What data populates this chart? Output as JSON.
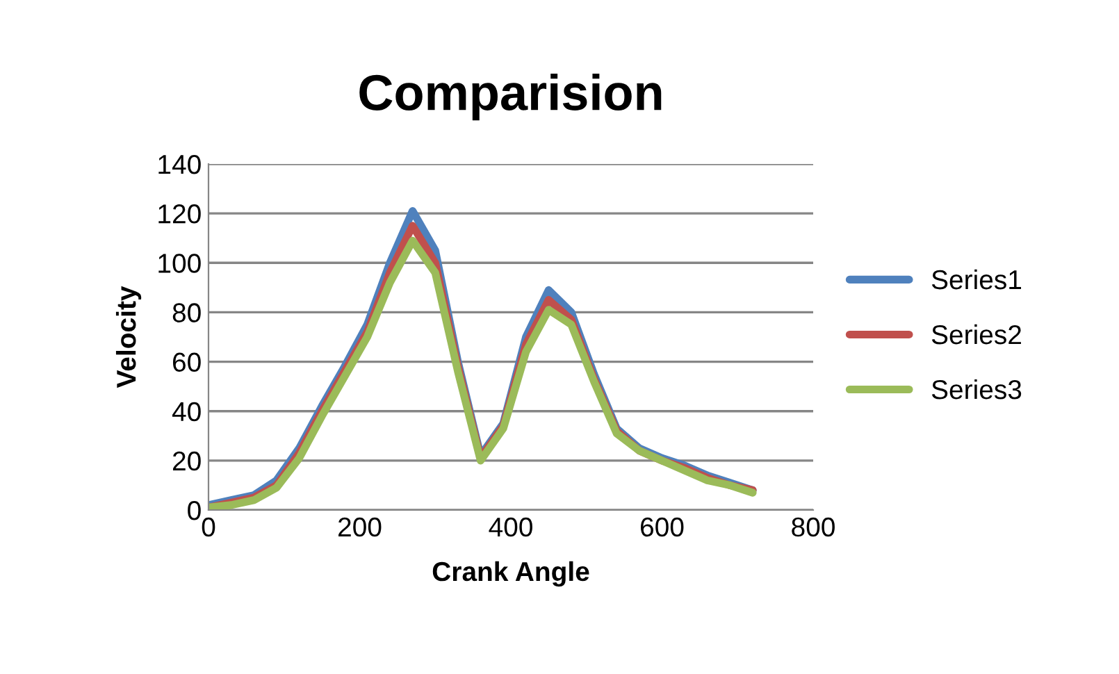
{
  "chart_data": {
    "type": "line",
    "title": "Comparision",
    "xlabel": "Crank Angle",
    "ylabel": "Velocity",
    "x": [
      0,
      30,
      60,
      90,
      120,
      150,
      180,
      210,
      240,
      270,
      300,
      330,
      360,
      390,
      420,
      450,
      480,
      510,
      540,
      570,
      600,
      630,
      660,
      690,
      720
    ],
    "series": [
      {
        "name": "Series1",
        "color": "#4f81bd",
        "values": [
          2,
          4,
          6,
          12,
          25,
          42,
          58,
          75,
          100,
          121,
          105,
          60,
          22,
          35,
          70,
          89,
          80,
          55,
          33,
          25,
          21,
          18,
          14,
          11,
          8
        ]
      },
      {
        "name": "Series2",
        "color": "#c0504d",
        "values": [
          1,
          3,
          5,
          10,
          23,
          40,
          56,
          72,
          96,
          115,
          100,
          58,
          21,
          34,
          67,
          85,
          77,
          53,
          32,
          24,
          20,
          17,
          13,
          10,
          8
        ]
      },
      {
        "name": "Series3",
        "color": "#9bbb59",
        "values": [
          1,
          2,
          4,
          9,
          21,
          38,
          54,
          70,
          92,
          109,
          96,
          56,
          20,
          33,
          64,
          81,
          75,
          52,
          31,
          24,
          20,
          16,
          12,
          10,
          7
        ]
      }
    ],
    "xlim": [
      0,
      800
    ],
    "xticks": [
      0,
      200,
      400,
      600,
      800
    ],
    "ylim": [
      0,
      140
    ],
    "yticks": [
      0,
      20,
      40,
      60,
      80,
      100,
      120,
      140
    ],
    "grid": "y",
    "legend": "right",
    "marker": "none",
    "line_style": "solid"
  }
}
